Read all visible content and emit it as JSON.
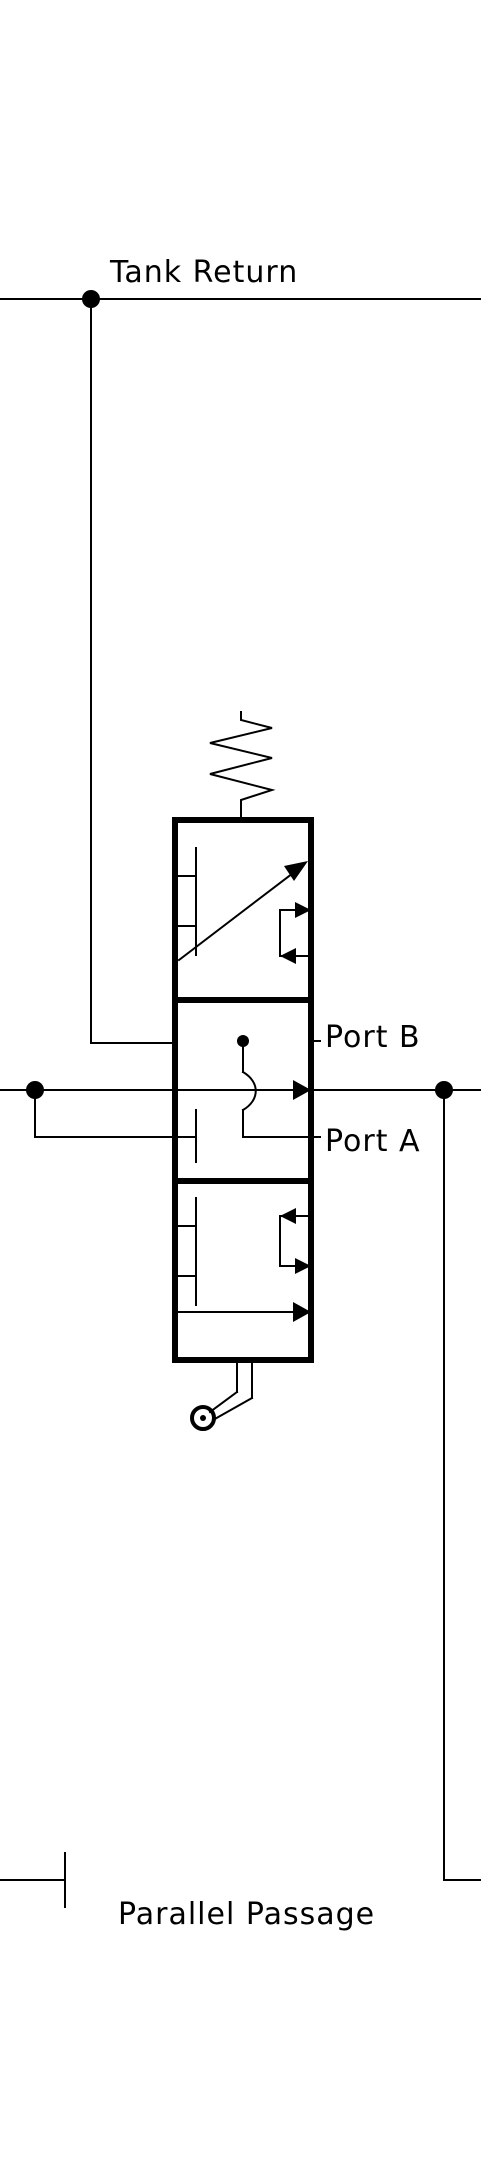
{
  "labels": {
    "tank_return": "Tank Return",
    "port_b": "Port B",
    "port_a": "Port A",
    "parallel_passage": "Parallel Passage"
  },
  "colors": {
    "line": "#000000",
    "background": "#ffffff"
  }
}
